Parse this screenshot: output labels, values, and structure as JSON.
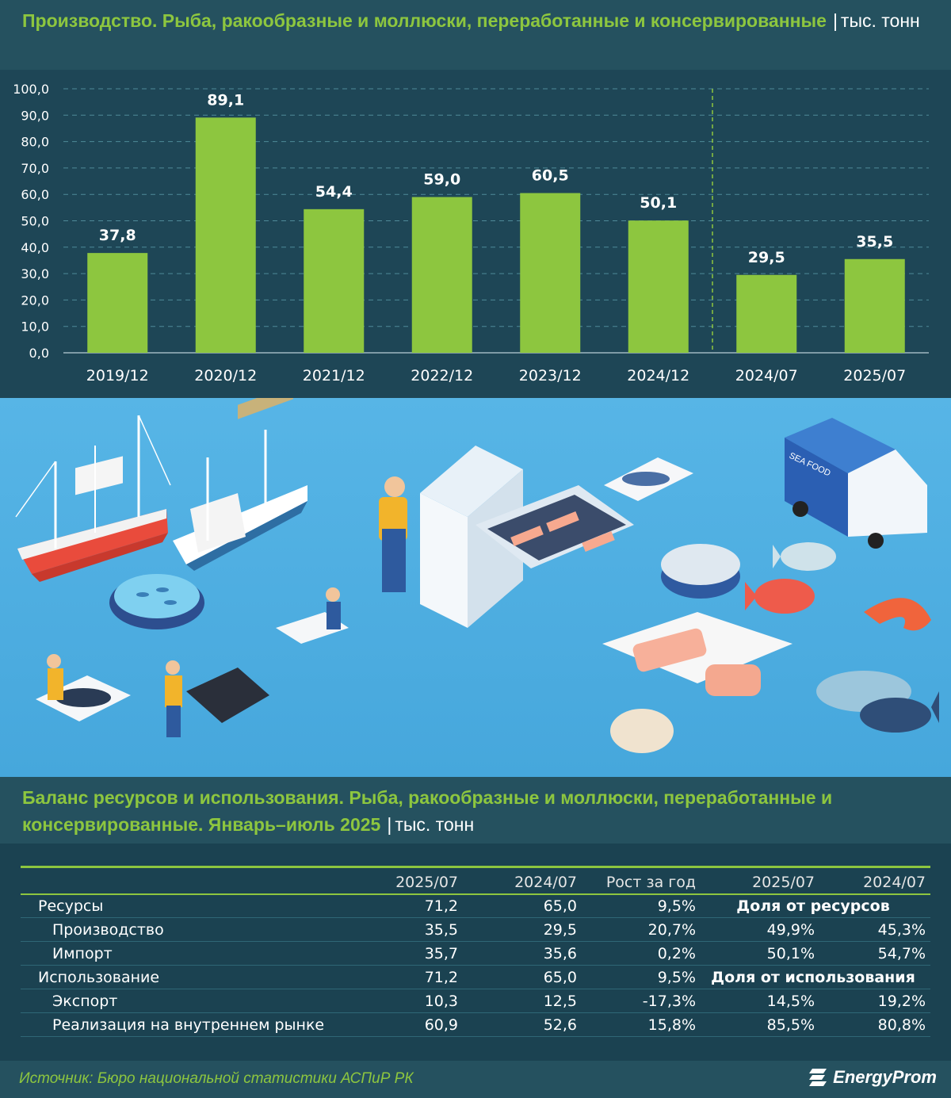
{
  "chart_title": "Производство. Рыба, ракообразные и моллюски, переработанные и консервированные",
  "chart_unit": "тыс. тонн",
  "chart_data": {
    "type": "bar",
    "title": "Производство. Рыба, ракообразные и моллюски, переработанные и консервированные",
    "unit": "тыс. тонн",
    "categories": [
      "2019/12",
      "2020/12",
      "2021/12",
      "2022/12",
      "2023/12",
      "2024/12",
      "2024/07",
      "2025/07"
    ],
    "values": [
      37.8,
      89.1,
      54.4,
      59.0,
      60.5,
      50.1,
      29.5,
      35.5
    ],
    "value_labels": [
      "37,8",
      "89,1",
      "54,4",
      "59,0",
      "60,5",
      "50,1",
      "29,5",
      "35,5"
    ],
    "yticks": [
      "0,0",
      "10,0",
      "20,0",
      "30,0",
      "40,0",
      "50,0",
      "60,0",
      "70,0",
      "80,0",
      "90,0",
      "100,0"
    ],
    "ylim": [
      0,
      100
    ],
    "grid": true,
    "separator_after_index": 5,
    "bar_color": "#8dc63f"
  },
  "table_title": "Баланс ресурсов и использования. Рыба, ракообразные и моллюски, переработанные и консервированные. Январь–июль 2025",
  "table_unit": "тыс. тонн",
  "table": {
    "headers": [
      "",
      "2025/07",
      "2024/07",
      "Рост за год",
      "2025/07",
      "2024/07"
    ],
    "rows": [
      {
        "label": "Ресурсы",
        "sub": false,
        "v1": "71,2",
        "v2": "65,0",
        "g": "9,5%",
        "group": "Доля от ресурсов"
      },
      {
        "label": "Производство",
        "sub": true,
        "v1": "35,5",
        "v2": "29,5",
        "g": "20,7%",
        "s1": "49,9%",
        "s2": "45,3%"
      },
      {
        "label": "Импорт",
        "sub": true,
        "v1": "35,7",
        "v2": "35,6",
        "g": "0,2%",
        "s1": "50,1%",
        "s2": "54,7%"
      },
      {
        "label": "Использование",
        "sub": false,
        "v1": "71,2",
        "v2": "65,0",
        "g": "9,5%",
        "group": "Доля от использования"
      },
      {
        "label": "Экспорт",
        "sub": true,
        "v1": "10,3",
        "v2": "12,5",
        "g": "-17,3%",
        "s1": "14,5%",
        "s2": "19,2%"
      },
      {
        "label": "Реализация на внутреннем рынке",
        "sub": true,
        "v1": "60,9",
        "v2": "52,6",
        "g": "15,8%",
        "s1": "85,5%",
        "s2": "80,8%"
      }
    ]
  },
  "illustration": {
    "truck_text": "SEA FOOD"
  },
  "footer": {
    "source": "Источник: Бюро национальной статистики АСПиР РК",
    "logo": "EnergyProm"
  },
  "colors": {
    "accent_green": "#8dc63f",
    "background_dark": "#1e4656",
    "illustration_blue": "#4fb0e2"
  }
}
